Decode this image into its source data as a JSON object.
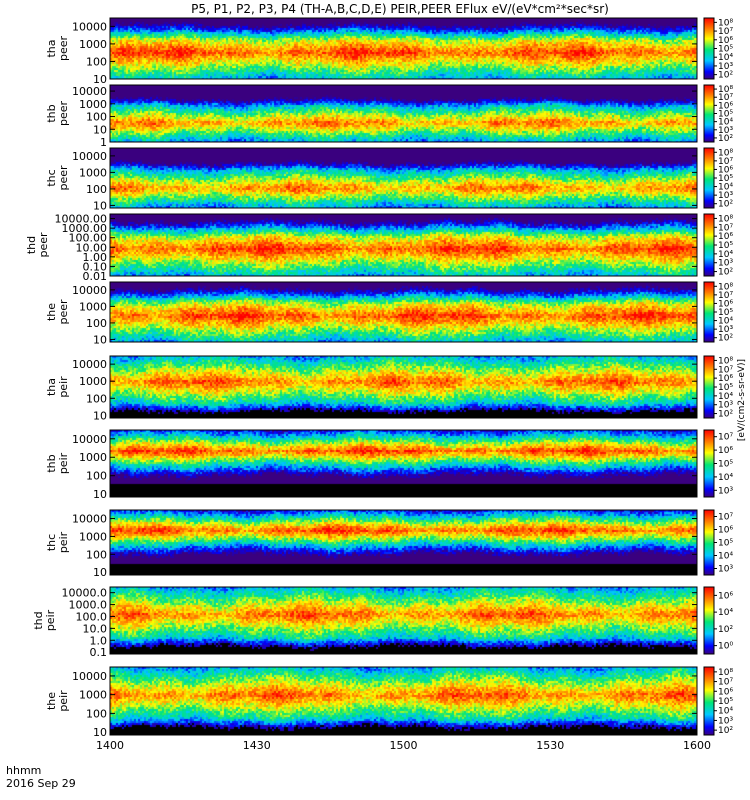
{
  "chart_data": {
    "type": "heatmap",
    "title": "P5, P1, P2, P3, P4 (TH-A,B,C,D,E) PEIR,PEER EFlux eV/(eV*cm²*sec*sr)",
    "colorbar_label": "[eV/(cm2-s-sr-eV)]",
    "x_axis": {
      "label": "hhmm",
      "date": "2016 Sep 29",
      "ticks": [
        "1400",
        "1430",
        "1500",
        "1530",
        "1600"
      ],
      "range": [
        "14:00",
        "16:00"
      ]
    },
    "panels": [
      {
        "name": "tha peer",
        "line1": "tha",
        "line2": "peer",
        "yticks": [
          "10",
          "100",
          "1000",
          "10000"
        ],
        "ylim": [
          10,
          30000
        ],
        "scale": "log",
        "colorbar": [
          "10²",
          "10³",
          "10⁴",
          "10⁵",
          "10⁶",
          "10⁷",
          "10⁸"
        ],
        "cb_range": [
          100,
          100000000
        ]
      },
      {
        "name": "thb peer",
        "line1": "thb",
        "line2": "peer",
        "yticks": [
          "1",
          "10",
          "100",
          "1000",
          "10000"
        ],
        "ylim": [
          1,
          30000
        ],
        "scale": "log",
        "colorbar": [
          "10²",
          "10³",
          "10⁴",
          "10⁵",
          "10⁶",
          "10⁷",
          "10⁸"
        ],
        "cb_range": [
          100,
          100000000
        ]
      },
      {
        "name": "thc peer",
        "line1": "thc",
        "line2": "peer",
        "yticks": [
          "10",
          "100",
          "1000",
          "10000"
        ],
        "ylim": [
          7,
          30000
        ],
        "scale": "log",
        "colorbar": [
          "10²",
          "10³",
          "10⁴",
          "10⁵",
          "10⁶",
          "10⁷",
          "10⁸"
        ],
        "cb_range": [
          100,
          100000000
        ]
      },
      {
        "name": "thd peer",
        "line1": "thd",
        "line2": "peer",
        "yticks": [
          "0.01",
          "0.10",
          "1.00",
          "10.00",
          "100.00",
          "1000.00",
          "10000.00"
        ],
        "ylim": [
          0.01,
          30000
        ],
        "scale": "log",
        "colorbar": [
          "10²",
          "10³",
          "10⁴",
          "10⁵",
          "10⁶",
          "10⁷",
          "10⁸"
        ],
        "cb_range": [
          100,
          100000000
        ]
      },
      {
        "name": "the peer",
        "line1": "the",
        "line2": "peer",
        "yticks": [
          "10",
          "100",
          "1000",
          "10000"
        ],
        "ylim": [
          7,
          30000
        ],
        "scale": "log",
        "colorbar": [
          "10²",
          "10³",
          "10⁴",
          "10⁵",
          "10⁶",
          "10⁷",
          "10⁸"
        ],
        "cb_range": [
          100,
          100000000
        ]
      },
      {
        "name": "tha peir",
        "line1": "tha",
        "line2": "peir",
        "yticks": [
          "10",
          "100",
          "1000",
          "10000"
        ],
        "ylim": [
          7,
          30000
        ],
        "scale": "log",
        "colorbar": [
          "10²",
          "10³",
          "10⁴",
          "10⁵",
          "10⁶",
          "10⁷",
          "10⁸"
        ],
        "cb_range": [
          100,
          100000000
        ]
      },
      {
        "name": "thb peir",
        "line1": "thb",
        "line2": "peir",
        "yticks": [
          "10",
          "100",
          "1000",
          "10000"
        ],
        "ylim": [
          7,
          30000
        ],
        "scale": "log",
        "colorbar": [
          "10³",
          "10⁴",
          "10⁵",
          "10⁶",
          "10⁷"
        ],
        "cb_range": [
          1000,
          10000000
        ]
      },
      {
        "name": "thc peir",
        "line1": "thc",
        "line2": "peir",
        "yticks": [
          "10",
          "100",
          "1000",
          "10000"
        ],
        "ylim": [
          7,
          30000
        ],
        "scale": "log",
        "colorbar": [
          "10³",
          "10⁴",
          "10⁵",
          "10⁶",
          "10⁷"
        ],
        "cb_range": [
          1000,
          10000000
        ]
      },
      {
        "name": "thd peir",
        "line1": "thd",
        "line2": "peir",
        "yticks": [
          "0.1",
          "1.0",
          "10.0",
          "100.0",
          "1000.0",
          "10000.0"
        ],
        "ylim": [
          0.07,
          30000
        ],
        "scale": "log",
        "colorbar": [
          "10⁰",
          "10²",
          "10⁴",
          "10⁶"
        ],
        "cb_range": [
          1,
          10000000
        ]
      },
      {
        "name": "the peir",
        "line1": "the",
        "line2": "peir",
        "yticks": [
          "10",
          "100",
          "1000",
          "10000"
        ],
        "ylim": [
          7,
          30000
        ],
        "scale": "log",
        "colorbar": [
          "10²",
          "10³",
          "10⁴",
          "10⁵",
          "10⁶",
          "10⁷",
          "10⁸"
        ],
        "cb_range": [
          100,
          100000000
        ]
      }
    ]
  }
}
